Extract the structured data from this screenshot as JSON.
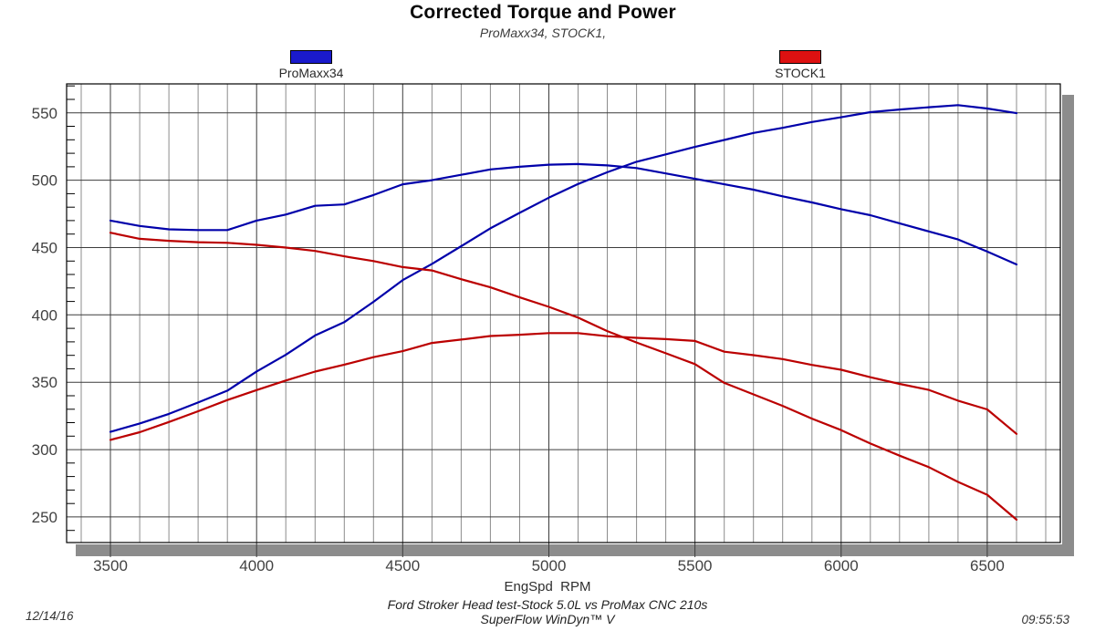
{
  "header": {
    "title": "Corrected Torque and Power",
    "subtitle": "ProMaxx34, STOCK1,"
  },
  "legend": [
    {
      "label": "ProMaxx34",
      "color": "#1a1acc"
    },
    {
      "label": "STOCK1",
      "color": "#dd1111"
    }
  ],
  "footer": {
    "line1": "Ford Stroker Head test-Stock 5.0L vs ProMax CNC 210s",
    "line2": "SuperFlow WinDyn™ V",
    "date": "12/14/16",
    "time": "09:55:53"
  },
  "colors": {
    "blue_curve": "#0000aa",
    "red_curve": "#bb0000",
    "grid_major": "#3c3c3c",
    "grid_minor": "#8c8c8c",
    "frame": "#000000",
    "shadow": "#8c8c8c",
    "tick_text": "#424242"
  },
  "chart_data": {
    "type": "line",
    "title": "Corrected Torque and Power",
    "subtitle": "ProMaxx34, STOCK1,",
    "xlabel": "EngSpd  RPM",
    "ylabel": "",
    "xlim": [
      3350,
      6750
    ],
    "ylim": [
      231,
      571.5
    ],
    "x_ticks": [
      3500,
      4000,
      4500,
      5000,
      5500,
      6000,
      6500
    ],
    "y_ticks": [
      250,
      300,
      350,
      400,
      450,
      500,
      550
    ],
    "grid": {
      "x_minor_step_rpm": 100,
      "y_major_step": 50,
      "y_minor_tick_step": 10,
      "grid_on": true
    },
    "legend_position": "top",
    "x": [
      3500,
      3600,
      3700,
      3800,
      3900,
      4000,
      4100,
      4200,
      4300,
      4400,
      4500,
      4600,
      4700,
      4800,
      4900,
      5000,
      5100,
      5200,
      5300,
      5400,
      5500,
      5600,
      5700,
      5800,
      5900,
      6000,
      6100,
      6200,
      6300,
      6400,
      6500,
      6600
    ],
    "series": [
      {
        "name": "ProMaxx34 torque (lb-ft)",
        "color": "#0000aa",
        "values": [
          470,
          466,
          463.5,
          463,
          463,
          470,
          474.5,
          481,
          482,
          489,
          497,
          500,
          504,
          508,
          510,
          511.5,
          512,
          511,
          509,
          505,
          501,
          497,
          493,
          488,
          483.5,
          478.5,
          474,
          468,
          462,
          456,
          447,
          437.5
        ]
      },
      {
        "name": "ProMaxx34 power (hp)",
        "color": "#0000aa",
        "values": [
          313.2,
          319.4,
          326.5,
          335.0,
          343.8,
          358.0,
          370.4,
          384.7,
          394.6,
          409.7,
          425.8,
          437.9,
          451.0,
          464.3,
          475.8,
          487.0,
          497.2,
          505.9,
          513.7,
          519.2,
          524.7,
          529.9,
          535.1,
          538.9,
          543.2,
          546.7,
          550.5,
          552.5,
          554.2,
          555.7,
          553.2,
          549.8
        ]
      },
      {
        "name": "STOCK1 torque (lb-ft)",
        "color": "#bb0000",
        "values": [
          461,
          456.5,
          455,
          454,
          453.5,
          452,
          450,
          447.5,
          443.5,
          440,
          435.5,
          433,
          426.5,
          420.5,
          413,
          406,
          398,
          388,
          379.5,
          371.5,
          363.5,
          349.5,
          341,
          332.5,
          323,
          314.5,
          304.5,
          295.5,
          287,
          276,
          266.5,
          248
        ]
      },
      {
        "name": "STOCK1 power (hp)",
        "color": "#bb0000",
        "values": [
          307.2,
          312.9,
          320.5,
          328.5,
          336.8,
          344.2,
          351.3,
          357.9,
          363.1,
          368.6,
          373.1,
          379.2,
          381.7,
          384.3,
          385.3,
          386.5,
          386.5,
          384.2,
          383.0,
          382.0,
          380.7,
          372.7,
          370.1,
          367.2,
          362.9,
          359.3,
          353.7,
          348.8,
          344.3,
          336.3,
          329.8,
          311.7
        ]
      }
    ]
  }
}
